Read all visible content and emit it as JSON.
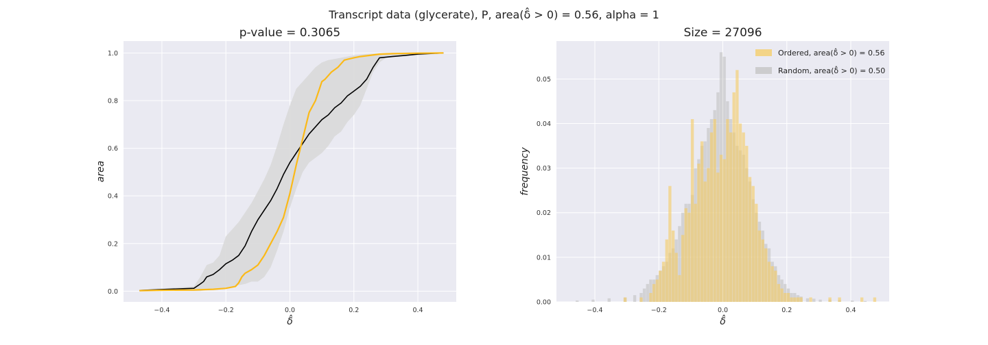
{
  "suptitle": "Transcript data (glycerate), P, area(δ̂ > 0) = 0.56, alpha = 1",
  "colors": {
    "background": "#eaeaf2",
    "grid": "#ffffff",
    "ordered": "#fbb917",
    "ordered_hist": "#f5cc63",
    "random": "#000000",
    "band": "#d9d9d9",
    "random_hist": "#c2c2c2"
  },
  "chart_data": [
    {
      "type": "line",
      "title": "p-value = 0.3065",
      "xlabel": "δ̂",
      "ylabel": "area",
      "xlim": [
        -0.52,
        0.52
      ],
      "ylim": [
        -0.045,
        1.05
      ],
      "xticks": [
        -0.4,
        -0.2,
        0.0,
        0.2,
        0.4
      ],
      "xtick_labels": [
        "−0.4",
        "−0.2",
        "0.0",
        "0.2",
        "0.4"
      ],
      "yticks": [
        0.0,
        0.2,
        0.4,
        0.6,
        0.8,
        1.0
      ],
      "ytick_labels": [
        "0.0",
        "0.2",
        "0.4",
        "0.6",
        "0.8",
        "1.0"
      ],
      "grid": true,
      "band": {
        "x": [
          -0.47,
          -0.3,
          -0.28,
          -0.26,
          -0.24,
          -0.22,
          -0.2,
          -0.18,
          -0.16,
          -0.14,
          -0.12,
          -0.1,
          -0.08,
          -0.06,
          -0.04,
          -0.02,
          0.0,
          0.02,
          0.04,
          0.06,
          0.08,
          0.1,
          0.12,
          0.14,
          0.16,
          0.18,
          0.2,
          0.22,
          0.24,
          0.26,
          0.28,
          0.3,
          0.4,
          0.48
        ],
        "upper": [
          0.005,
          0.02,
          0.06,
          0.11,
          0.12,
          0.15,
          0.23,
          0.26,
          0.29,
          0.33,
          0.37,
          0.42,
          0.47,
          0.53,
          0.61,
          0.7,
          0.78,
          0.85,
          0.88,
          0.91,
          0.94,
          0.96,
          0.97,
          0.975,
          0.98,
          0.985,
          0.99,
          0.993,
          0.996,
          0.998,
          0.999,
          1.0,
          1.0,
          1.0
        ],
        "lower": [
          0.0,
          0.0,
          0.0,
          0.005,
          0.01,
          0.012,
          0.015,
          0.02,
          0.025,
          0.03,
          0.04,
          0.04,
          0.06,
          0.1,
          0.17,
          0.25,
          0.35,
          0.43,
          0.5,
          0.54,
          0.56,
          0.58,
          0.61,
          0.65,
          0.67,
          0.71,
          0.74,
          0.78,
          0.85,
          0.92,
          0.96,
          0.98,
          0.99,
          1.0
        ]
      },
      "series": [
        {
          "name": "Ordered",
          "x": [
            -0.47,
            -0.4,
            -0.3,
            -0.24,
            -0.2,
            -0.17,
            -0.16,
            -0.15,
            -0.14,
            -0.12,
            -0.1,
            -0.08,
            -0.06,
            -0.04,
            -0.02,
            0.0,
            0.02,
            0.04,
            0.06,
            0.08,
            0.09,
            0.1,
            0.11,
            0.13,
            0.15,
            0.17,
            0.2,
            0.22,
            0.25,
            0.28,
            0.32,
            0.4,
            0.48
          ],
          "y": [
            0.002,
            0.004,
            0.005,
            0.008,
            0.012,
            0.02,
            0.035,
            0.06,
            0.075,
            0.09,
            0.11,
            0.15,
            0.2,
            0.25,
            0.31,
            0.41,
            0.53,
            0.64,
            0.75,
            0.8,
            0.84,
            0.88,
            0.89,
            0.92,
            0.94,
            0.97,
            0.98,
            0.985,
            0.99,
            0.995,
            0.997,
            0.999,
            1.0
          ]
        },
        {
          "name": "Random",
          "x": [
            -0.47,
            -0.4,
            -0.3,
            -0.28,
            -0.27,
            -0.26,
            -0.24,
            -0.22,
            -0.2,
            -0.18,
            -0.16,
            -0.14,
            -0.12,
            -0.1,
            -0.08,
            -0.06,
            -0.04,
            -0.02,
            0.0,
            0.02,
            0.04,
            0.06,
            0.08,
            0.1,
            0.12,
            0.14,
            0.16,
            0.18,
            0.2,
            0.22,
            0.24,
            0.26,
            0.28,
            0.32,
            0.36,
            0.4,
            0.48
          ],
          "y": [
            0.003,
            0.007,
            0.012,
            0.03,
            0.04,
            0.06,
            0.07,
            0.09,
            0.115,
            0.13,
            0.15,
            0.19,
            0.25,
            0.3,
            0.34,
            0.38,
            0.43,
            0.49,
            0.54,
            0.58,
            0.62,
            0.66,
            0.69,
            0.72,
            0.74,
            0.77,
            0.79,
            0.82,
            0.84,
            0.86,
            0.89,
            0.94,
            0.98,
            0.985,
            0.99,
            0.995,
            1.0
          ]
        }
      ]
    },
    {
      "type": "bar",
      "title": "Size = 27096",
      "xlabel": "δ̂",
      "ylabel": "frequency",
      "xlim": [
        -0.52,
        0.52
      ],
      "ylim": [
        0.0,
        0.0585
      ],
      "xticks": [
        -0.4,
        -0.2,
        0.0,
        0.2,
        0.4
      ],
      "xtick_labels": [
        "−0.4",
        "−0.2",
        "0.0",
        "0.2",
        "0.4"
      ],
      "yticks": [
        0.0,
        0.01,
        0.02,
        0.03,
        0.04,
        0.05
      ],
      "ytick_labels": [
        "0.00",
        "0.01",
        "0.02",
        "0.03",
        "0.04",
        "0.05"
      ],
      "grid": true,
      "legend_position": "top-right",
      "bin_width": 0.01,
      "series": [
        {
          "name": "Ordered, area(δ̂ > 0) = 0.56",
          "bin_centers": [
            -0.305,
            -0.255,
            -0.225,
            -0.215,
            -0.205,
            -0.195,
            -0.185,
            -0.175,
            -0.165,
            -0.155,
            -0.145,
            -0.135,
            -0.125,
            -0.115,
            -0.105,
            -0.095,
            -0.085,
            -0.075,
            -0.065,
            -0.055,
            -0.045,
            -0.035,
            -0.025,
            -0.015,
            -0.005,
            0.005,
            0.015,
            0.025,
            0.035,
            0.045,
            0.055,
            0.065,
            0.075,
            0.085,
            0.095,
            0.105,
            0.115,
            0.125,
            0.135,
            0.145,
            0.155,
            0.165,
            0.175,
            0.185,
            0.195,
            0.205,
            0.215,
            0.225,
            0.235,
            0.245,
            0.275,
            0.335,
            0.365,
            0.435,
            0.475
          ],
          "values": [
            0.001,
            0.001,
            0.002,
            0.004,
            0.005,
            0.007,
            0.009,
            0.014,
            0.026,
            0.016,
            0.011,
            0.006,
            0.015,
            0.021,
            0.02,
            0.041,
            0.022,
            0.031,
            0.036,
            0.027,
            0.03,
            0.038,
            0.041,
            0.029,
            0.033,
            0.032,
            0.041,
            0.038,
            0.047,
            0.052,
            0.04,
            0.038,
            0.035,
            0.028,
            0.026,
            0.022,
            0.016,
            0.014,
            0.012,
            0.009,
            0.008,
            0.007,
            0.004,
            0.003,
            0.002,
            0.002,
            0.001,
            0.001,
            0.001,
            0.001,
            0.001,
            0.001,
            0.001,
            0.001,
            0.001
          ]
        },
        {
          "name": "Random, area(δ̂ > 0) = 0.50",
          "bin_centers": [
            -0.455,
            -0.405,
            -0.355,
            -0.305,
            -0.275,
            -0.255,
            -0.245,
            -0.235,
            -0.225,
            -0.215,
            -0.205,
            -0.195,
            -0.185,
            -0.175,
            -0.165,
            -0.155,
            -0.145,
            -0.135,
            -0.125,
            -0.115,
            -0.105,
            -0.095,
            -0.085,
            -0.075,
            -0.065,
            -0.055,
            -0.045,
            -0.035,
            -0.025,
            -0.015,
            -0.005,
            0.005,
            0.015,
            0.025,
            0.035,
            0.045,
            0.055,
            0.065,
            0.075,
            0.085,
            0.095,
            0.105,
            0.115,
            0.125,
            0.135,
            0.145,
            0.155,
            0.165,
            0.175,
            0.185,
            0.195,
            0.205,
            0.215,
            0.225,
            0.235,
            0.245,
            0.265,
            0.285,
            0.305,
            0.335,
            0.365,
            0.405,
            0.445
          ],
          "values": [
            0.0003,
            0.0005,
            0.0008,
            0.001,
            0.0015,
            0.002,
            0.003,
            0.004,
            0.005,
            0.005,
            0.006,
            0.007,
            0.008,
            0.009,
            0.011,
            0.012,
            0.014,
            0.017,
            0.02,
            0.022,
            0.022,
            0.024,
            0.03,
            0.032,
            0.035,
            0.036,
            0.039,
            0.041,
            0.043,
            0.047,
            0.056,
            0.055,
            0.045,
            0.041,
            0.038,
            0.035,
            0.034,
            0.033,
            0.03,
            0.027,
            0.023,
            0.02,
            0.018,
            0.016,
            0.013,
            0.012,
            0.009,
            0.008,
            0.006,
            0.005,
            0.004,
            0.003,
            0.002,
            0.002,
            0.0015,
            0.0012,
            0.0008,
            0.0007,
            0.0005,
            0.0005,
            0.0004,
            0.0003,
            0.0002
          ]
        }
      ]
    }
  ]
}
